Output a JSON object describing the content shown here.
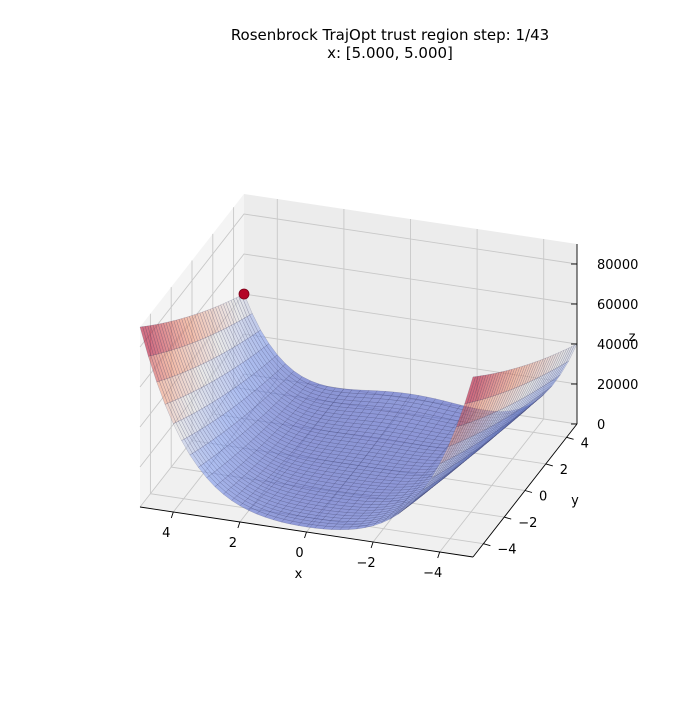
{
  "chart_data": {
    "type": "surface3d",
    "function": "rosenbrock",
    "title_line1": "Rosenbrock TrajOpt trust region step: 1/43",
    "title_line2": "x: [5.000, 5.000]",
    "xlabel": "x",
    "ylabel": "y",
    "zlabel": "z",
    "x_range": [
      -5,
      5
    ],
    "y_range": [
      -5,
      5
    ],
    "z_range": [
      0,
      90000
    ],
    "x_ticks": [
      4,
      2,
      0,
      -2,
      -4
    ],
    "x_tick_labels": [
      "4",
      "2",
      "0",
      "−2",
      "−4"
    ],
    "y_ticks": [
      -4,
      -2,
      0,
      2,
      4
    ],
    "y_tick_labels": [
      "−4",
      "−2",
      "0",
      "2",
      "4"
    ],
    "z_ticks": [
      0,
      20000,
      40000,
      60000,
      80000
    ],
    "z_tick_labels": [
      "0",
      "20000",
      "40000",
      "60000",
      "80000"
    ],
    "colormap": [
      "#3b4cc0",
      "#b40426"
    ],
    "grid": true,
    "point": {
      "x": 5.0,
      "y": 5.0,
      "z": 40016,
      "color": "#b40426"
    }
  }
}
